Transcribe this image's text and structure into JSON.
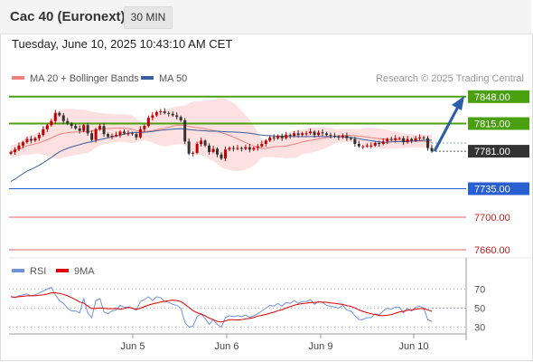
{
  "header": {
    "title": "Cac 40 (Euronext)",
    "timeframe": "30 MIN",
    "date": "Tuesday, June 10, 2025 10:43:10 AM CET"
  },
  "legend": {
    "ma20": "MA 20 + Bollinger Bands",
    "ma50": "MA 50",
    "credit": "Research © 2025 Trading Central"
  },
  "colors": {
    "up": "#c00000",
    "down": "#333333",
    "green": "#4aa010",
    "blue": "#2a5fd0",
    "red_level": "#e06060",
    "ma20": "#f08080",
    "ma50": "#3a5fa0",
    "band": "#fde0e0",
    "rsi": "#7090e0",
    "rsi_ma": "#e00000",
    "arrow": "#2a5fa8"
  },
  "chart_data": [
    {
      "type": "candlestick",
      "x_labels": [
        "Jun 5",
        "Jun 6",
        "Jun 9",
        "Jun 10"
      ],
      "ylim": [
        7650,
        7860
      ],
      "levels": [
        {
          "value": "7848.00",
          "style": "resistance"
        },
        {
          "value": "7815.00",
          "style": "resistance"
        },
        {
          "value": "7781.00",
          "style": "current"
        },
        {
          "value": "7735.00",
          "style": "support"
        },
        {
          "value": "7700.00",
          "style": "support-weak"
        },
        {
          "value": "7660.00",
          "style": "support-weak"
        }
      ],
      "series": [
        {
          "name": "MA 20 + Bollinger Bands"
        },
        {
          "name": "MA 50"
        }
      ],
      "close": [
        7780,
        7783,
        7788,
        7792,
        7796,
        7794,
        7797,
        7801,
        7808,
        7813,
        7818,
        7828,
        7825,
        7818,
        7815,
        7812,
        7809,
        7806,
        7813,
        7803,
        7795,
        7808,
        7812,
        7802,
        7799,
        7800,
        7801,
        7805,
        7803,
        7803,
        7802,
        7798,
        7808,
        7812,
        7822,
        7825,
        7829,
        7830,
        7828,
        7827,
        7825,
        7823,
        7819,
        7793,
        7778,
        7779,
        7790,
        7794,
        7788,
        7780,
        7784,
        7777,
        7772,
        7783,
        7785,
        7784,
        7785,
        7784,
        7786,
        7783,
        7785,
        7787,
        7790,
        7794,
        7798,
        7797,
        7800,
        7797,
        7801,
        7800,
        7803,
        7801,
        7803,
        7803,
        7805,
        7801,
        7804,
        7803,
        7801,
        7800,
        7799,
        7798,
        7800,
        7797,
        7796,
        7790,
        7787,
        7787,
        7788,
        7788,
        7791,
        7790,
        7793,
        7796,
        7795,
        7797,
        7797,
        7792,
        7796,
        7794,
        7797,
        7798,
        7797,
        7785,
        7781
      ],
      "rsi_ylim": [
        20,
        80
      ],
      "rsi_ticks": [
        "70",
        "50",
        "30"
      ],
      "rsi_series": [
        {
          "name": "RSI"
        },
        {
          "name": "9MA"
        }
      ],
      "rsi": [
        62,
        61,
        63,
        64,
        65,
        63,
        64,
        66,
        68,
        70,
        72,
        64,
        58,
        55,
        50,
        47,
        47,
        45,
        60,
        45,
        40,
        58,
        60,
        46,
        44,
        47,
        48,
        53,
        51,
        51,
        50,
        48,
        57,
        59,
        62,
        58,
        62,
        61,
        57,
        56,
        54,
        53,
        50,
        35,
        30,
        31,
        41,
        44,
        39,
        33,
        38,
        33,
        30,
        40,
        42,
        41,
        42,
        41,
        43,
        40,
        42,
        44,
        47,
        50,
        53,
        52,
        55,
        52,
        56,
        55,
        58,
        55,
        57,
        57,
        59,
        54,
        57,
        56,
        53,
        52,
        51,
        50,
        53,
        48,
        47,
        42,
        38,
        38,
        40,
        40,
        44,
        43,
        47,
        50,
        49,
        51,
        51,
        45,
        50,
        47,
        51,
        52,
        50,
        38,
        36
      ]
    }
  ]
}
